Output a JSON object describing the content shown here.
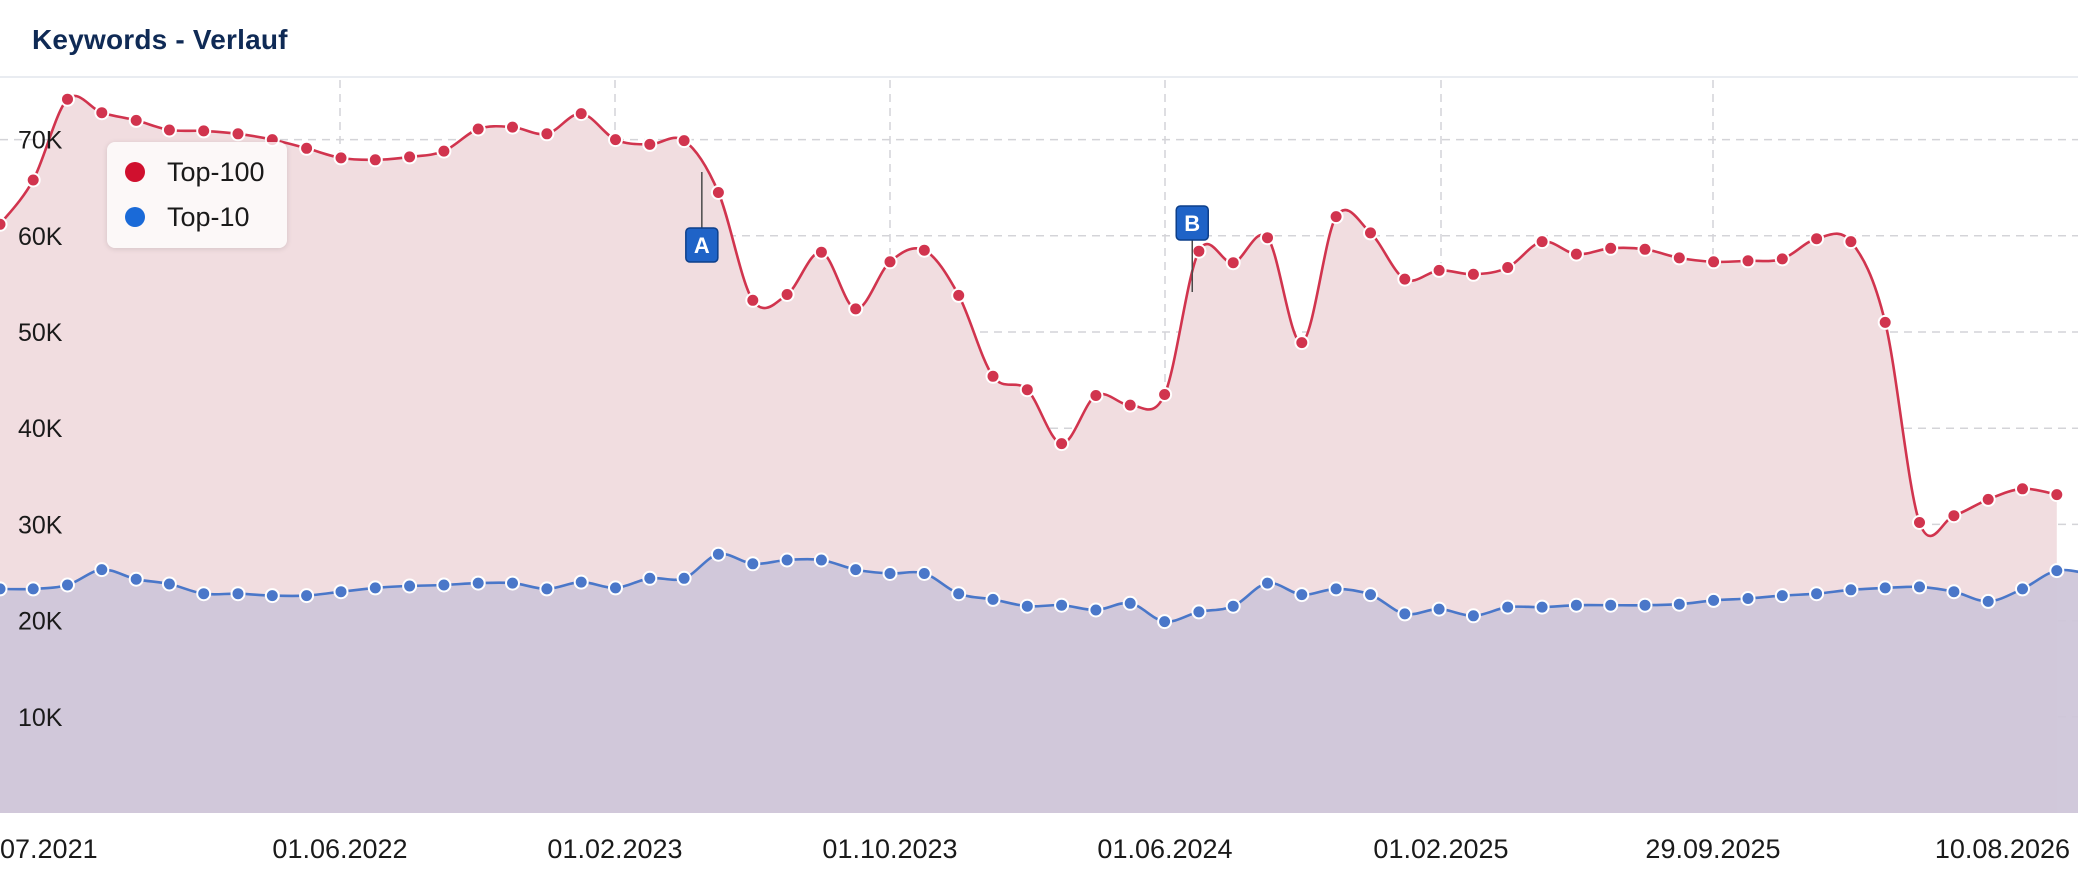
{
  "header": {
    "title": "Keywords - Verlauf"
  },
  "chart_data": {
    "type": "area",
    "title": "Keywords - Verlauf",
    "xlabel": "",
    "ylabel": "",
    "x_ticks": [
      "07.2021",
      "01.06.2022",
      "01.02.2023",
      "01.10.2023",
      "01.06.2024",
      "01.02.2025",
      "29.09.2025",
      "10.08.2026"
    ],
    "y_ticks": [
      "10K",
      "20K",
      "30K",
      "40K",
      "50K",
      "60K",
      "70K"
    ],
    "ylim": [
      0,
      75000
    ],
    "grid": true,
    "legend_position": "top-left",
    "series": [
      {
        "name": "Top-100",
        "color": "#d1344e",
        "fill": "#f1dde0",
        "points": [
          [
            "2021-05-26",
            61200
          ],
          [
            "2021-06-25",
            65800
          ],
          [
            "2021-07-26",
            74200
          ],
          [
            "2021-08-26",
            72800
          ],
          [
            "2021-09-26",
            72000
          ],
          [
            "2021-10-26",
            71000
          ],
          [
            "2021-11-26",
            70900
          ],
          [
            "2021-12-27",
            70600
          ],
          [
            "2022-01-27",
            70000
          ],
          [
            "2022-02-27",
            69100
          ],
          [
            "2022-03-30",
            68100
          ],
          [
            "2022-04-30",
            67900
          ],
          [
            "2022-05-31",
            68200
          ],
          [
            "2022-07-01",
            68800
          ],
          [
            "2022-08-01",
            71100
          ],
          [
            "2022-09-01",
            71300
          ],
          [
            "2022-10-02",
            70600
          ],
          [
            "2022-11-02",
            72700
          ],
          [
            "2022-12-03",
            70000
          ],
          [
            "2023-01-03",
            69500
          ],
          [
            "2023-02-03",
            69900
          ],
          [
            "2023-03-06",
            64500
          ],
          [
            "2023-04-06",
            53300
          ],
          [
            "2023-05-07",
            53900
          ],
          [
            "2023-06-07",
            58300
          ],
          [
            "2023-07-08",
            52400
          ],
          [
            "2023-08-08",
            57300
          ],
          [
            "2023-09-08",
            58500
          ],
          [
            "2023-10-09",
            53800
          ],
          [
            "2023-11-09",
            45400
          ],
          [
            "2023-12-10",
            44000
          ],
          [
            "2024-01-10",
            38400
          ],
          [
            "2024-02-10",
            43400
          ],
          [
            "2024-03-12",
            42400
          ],
          [
            "2024-04-12",
            43500
          ],
          [
            "2024-05-13",
            58400
          ],
          [
            "2024-06-13",
            57200
          ],
          [
            "2024-07-14",
            59800
          ],
          [
            "2024-08-14",
            48900
          ],
          [
            "2024-09-14",
            62000
          ],
          [
            "2024-10-15",
            60300
          ],
          [
            "2024-11-15",
            55500
          ],
          [
            "2024-12-16",
            56400
          ],
          [
            "2025-01-16",
            56000
          ],
          [
            "2025-02-16",
            56700
          ],
          [
            "2025-03-19",
            59400
          ],
          [
            "2025-04-19",
            58100
          ],
          [
            "2025-05-20",
            58700
          ],
          [
            "2025-06-20",
            58600
          ],
          [
            "2025-07-21",
            57700
          ],
          [
            "2025-08-21",
            57300
          ],
          [
            "2025-09-21",
            57400
          ],
          [
            "2025-10-22",
            57600
          ],
          [
            "2025-11-22",
            59700
          ],
          [
            "2025-12-23",
            59400
          ],
          [
            "2026-01-23",
            51000
          ],
          [
            "2026-02-23",
            30200
          ],
          [
            "2026-03-26",
            30900
          ],
          [
            "2026-04-26",
            32600
          ],
          [
            "2026-05-27",
            33700
          ],
          [
            "2026-06-27",
            33100
          ]
        ]
      },
      {
        "name": "Top-10",
        "color": "#4a77c9",
        "fill": "#cfc6d9",
        "points": [
          [
            "2021-05-26",
            23300
          ],
          [
            "2021-06-25",
            23300
          ],
          [
            "2021-07-26",
            23700
          ],
          [
            "2021-08-26",
            25300
          ],
          [
            "2021-09-26",
            24300
          ],
          [
            "2021-10-26",
            23800
          ],
          [
            "2021-11-26",
            22800
          ],
          [
            "2021-12-27",
            22800
          ],
          [
            "2022-01-27",
            22600
          ],
          [
            "2022-02-27",
            22600
          ],
          [
            "2022-03-30",
            23000
          ],
          [
            "2022-04-30",
            23400
          ],
          [
            "2022-05-31",
            23600
          ],
          [
            "2022-07-01",
            23700
          ],
          [
            "2022-08-01",
            23900
          ],
          [
            "2022-09-01",
            23900
          ],
          [
            "2022-10-02",
            23300
          ],
          [
            "2022-11-02",
            24000
          ],
          [
            "2022-12-03",
            23400
          ],
          [
            "2023-01-03",
            24400
          ],
          [
            "2023-02-03",
            24400
          ],
          [
            "2023-03-06",
            26900
          ],
          [
            "2023-04-06",
            25900
          ],
          [
            "2023-05-07",
            26300
          ],
          [
            "2023-06-07",
            26300
          ],
          [
            "2023-07-08",
            25300
          ],
          [
            "2023-08-08",
            24900
          ],
          [
            "2023-09-08",
            24900
          ],
          [
            "2023-10-09",
            22800
          ],
          [
            "2023-11-09",
            22200
          ],
          [
            "2023-12-10",
            21500
          ],
          [
            "2024-01-10",
            21600
          ],
          [
            "2024-02-10",
            21100
          ],
          [
            "2024-03-12",
            21800
          ],
          [
            "2024-04-12",
            19900
          ],
          [
            "2024-05-13",
            20900
          ],
          [
            "2024-06-13",
            21500
          ],
          [
            "2024-07-14",
            23900
          ],
          [
            "2024-08-14",
            22700
          ],
          [
            "2024-09-14",
            23300
          ],
          [
            "2024-10-15",
            22700
          ],
          [
            "2024-11-15",
            20700
          ],
          [
            "2024-12-16",
            21200
          ],
          [
            "2025-01-16",
            20500
          ],
          [
            "2025-02-16",
            21400
          ],
          [
            "2025-03-19",
            21400
          ],
          [
            "2025-04-19",
            21600
          ],
          [
            "2025-05-20",
            21600
          ],
          [
            "2025-06-20",
            21600
          ],
          [
            "2025-07-21",
            21700
          ],
          [
            "2025-08-21",
            22100
          ],
          [
            "2025-09-21",
            22300
          ],
          [
            "2025-10-22",
            22600
          ],
          [
            "2025-11-22",
            22800
          ],
          [
            "2025-12-23",
            23200
          ],
          [
            "2026-01-23",
            23400
          ],
          [
            "2026-02-23",
            23500
          ],
          [
            "2026-03-26",
            23000
          ],
          [
            "2026-04-26",
            22000
          ],
          [
            "2026-05-27",
            23300
          ],
          [
            "2026-06-27",
            25200
          ],
          [
            "2026-07-28",
            24800
          ]
        ]
      }
    ],
    "annotations": [
      {
        "label": "A",
        "date": "2023-02-19",
        "color": "#1f63c7"
      },
      {
        "label": "B",
        "date": "2024-05-07",
        "color": "#1f63c7"
      }
    ]
  }
}
